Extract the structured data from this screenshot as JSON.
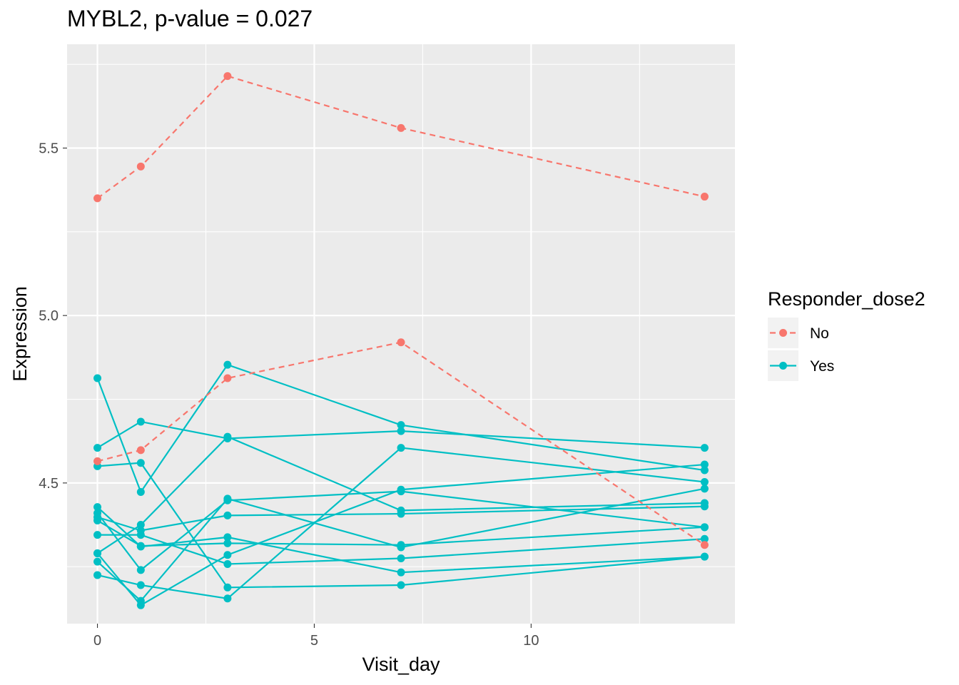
{
  "chart_data": {
    "type": "line",
    "title": "MYBL2, p-value = 0.027",
    "xlabel": "Visit_day",
    "ylabel": "Expression",
    "xlim": [
      -0.7,
      14.7
    ],
    "ylim": [
      4.08,
      5.81
    ],
    "xticks": [
      0,
      5,
      10
    ],
    "yticks": [
      4.5,
      5.0,
      5.5
    ],
    "xminor": [
      2.5,
      7.5,
      12.5
    ],
    "yminor": [
      4.25,
      4.75,
      5.25,
      5.75
    ],
    "grid": true,
    "legend": {
      "title": "Responder_dose2",
      "position": "right",
      "entries": [
        {
          "label": "No",
          "color": "#F8766D",
          "dashed": true
        },
        {
          "label": "Yes",
          "color": "#00BFC4",
          "dashed": false
        }
      ]
    },
    "x_visits": [
      0,
      1,
      3,
      7,
      14
    ],
    "series": [
      {
        "group": "No",
        "color": "#F8766D",
        "dashed": true,
        "values": [
          5.35,
          5.445,
          5.715,
          5.56,
          5.355
        ]
      },
      {
        "group": "No",
        "color": "#F8766D",
        "dashed": true,
        "values": [
          4.565,
          4.598,
          4.813,
          4.92,
          4.315
        ]
      },
      {
        "group": "Yes",
        "color": "#00BFC4",
        "dashed": false,
        "values": [
          4.813,
          4.473,
          4.853,
          4.673,
          4.538
        ]
      },
      {
        "group": "Yes",
        "color": "#00BFC4",
        "dashed": false,
        "values": [
          4.605,
          4.683,
          4.633,
          4.655,
          4.605
        ]
      },
      {
        "group": "Yes",
        "color": "#00BFC4",
        "dashed": false,
        "values": [
          4.55,
          4.56,
          4.188,
          4.195,
          4.28
        ]
      },
      {
        "group": "Yes",
        "color": "#00BFC4",
        "dashed": false,
        "values": [
          4.428,
          4.31,
          4.338,
          4.233,
          4.28
        ]
      },
      {
        "group": "Yes",
        "color": "#00BFC4",
        "dashed": false,
        "values": [
          4.41,
          4.24,
          4.448,
          4.475,
          4.368
        ]
      },
      {
        "group": "Yes",
        "color": "#00BFC4",
        "dashed": false,
        "values": [
          4.398,
          4.358,
          4.403,
          4.408,
          4.43
        ]
      },
      {
        "group": "Yes",
        "color": "#00BFC4",
        "dashed": false,
        "values": [
          4.388,
          4.312,
          4.32,
          4.315,
          4.368
        ]
      },
      {
        "group": "Yes",
        "color": "#00BFC4",
        "dashed": false,
        "values": [
          4.345,
          4.345,
          4.258,
          4.275,
          4.333
        ]
      },
      {
        "group": "Yes",
        "color": "#00BFC4",
        "dashed": false,
        "values": [
          4.29,
          4.375,
          4.638,
          4.418,
          4.44
        ]
      },
      {
        "group": "Yes",
        "color": "#00BFC4",
        "dashed": false,
        "values": [
          4.265,
          4.148,
          4.453,
          4.308,
          4.483
        ]
      },
      {
        "group": "Yes",
        "color": "#00BFC4",
        "dashed": false,
        "values": [
          4.29,
          4.135,
          4.285,
          4.48,
          4.555
        ]
      },
      {
        "group": "Yes",
        "color": "#00BFC4",
        "dashed": false,
        "values": [
          4.225,
          4.195,
          4.155,
          4.605,
          4.503
        ]
      }
    ]
  }
}
